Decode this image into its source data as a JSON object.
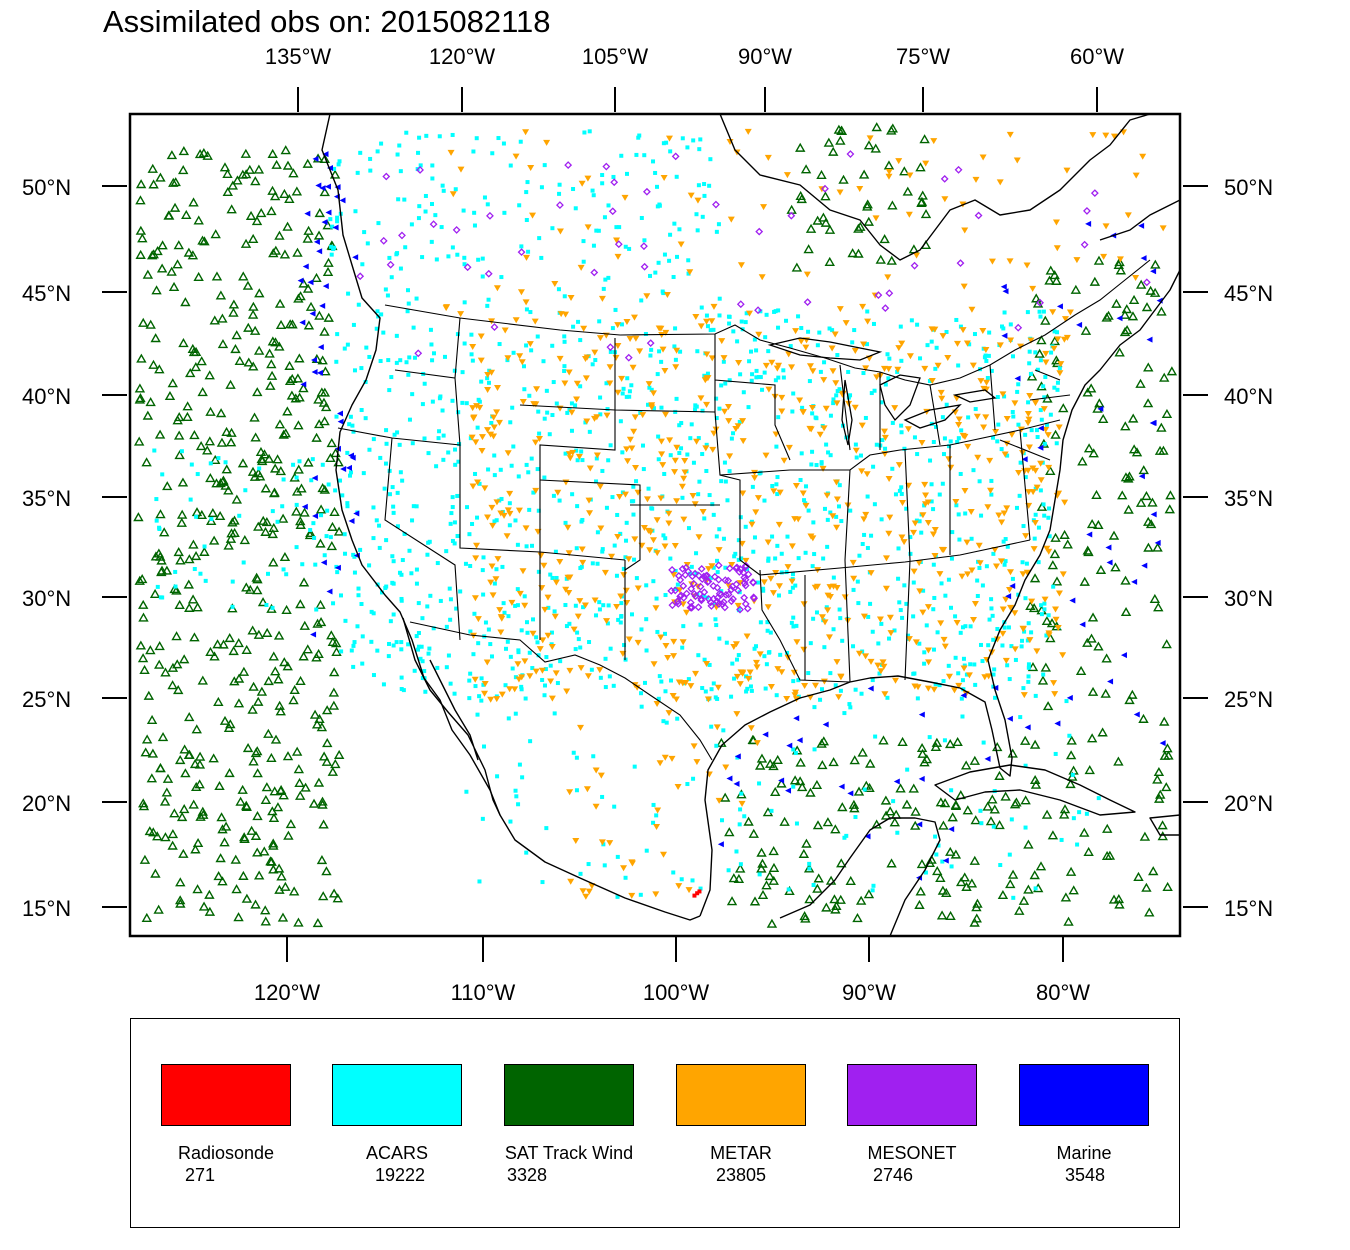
{
  "title": "Assimilated obs on: 2015082118",
  "map": {
    "top_lon_labels": [
      "135°W",
      "120°W",
      "105°W",
      "90°W",
      "75°W",
      "60°W"
    ],
    "bottom_lon_labels": [
      "120°W",
      "110°W",
      "100°W",
      "90°W",
      "80°W"
    ],
    "left_lat_labels": [
      "50°N",
      "45°N",
      "40°N",
      "35°N",
      "30°N",
      "25°N",
      "20°N",
      "15°N"
    ],
    "right_lat_labels": [
      "50°N",
      "45°N",
      "40°N",
      "35°N",
      "30°N",
      "25°N",
      "20°N",
      "15°N"
    ],
    "lat_range": [
      14,
      53
    ],
    "lon_range": [
      -128,
      -74
    ]
  },
  "legend": {
    "items": [
      {
        "name": "Radiosonde",
        "count": "271",
        "color": "#ff0000"
      },
      {
        "name": "ACARS",
        "count": "19222",
        "color": "#00ffff"
      },
      {
        "name": "SAT Track Wind",
        "count": "3328",
        "color": "#006400"
      },
      {
        "name": "METAR",
        "count": "23805",
        "color": "#ffa500"
      },
      {
        "name": "MESONET",
        "count": "2746",
        "color": "#a020f0"
      },
      {
        "name": "Marine",
        "count": "3548",
        "color": "#0000ff"
      }
    ]
  }
}
